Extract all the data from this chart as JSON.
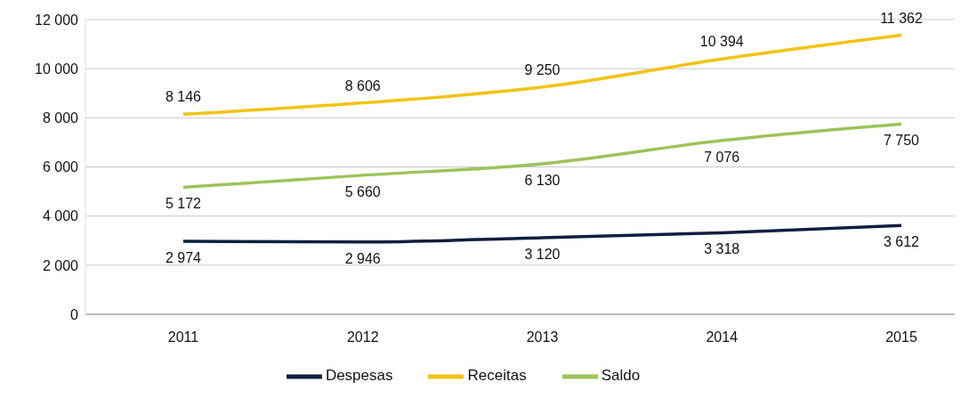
{
  "chart_data": {
    "type": "line",
    "categories": [
      "2011",
      "2012",
      "2013",
      "2014",
      "2015"
    ],
    "series": [
      {
        "name": "Receitas",
        "color": "#f2c314",
        "values": [
          8146,
          8606,
          9250,
          10394,
          11362
        ],
        "value_labels": [
          "8 146",
          "8 606",
          "9 250",
          "10 394",
          "11 362"
        ]
      },
      {
        "name": "Despesas",
        "color": "#0f1f40",
        "values": [
          2974,
          2946,
          3120,
          3318,
          3612
        ],
        "value_labels": [
          "2 974",
          "2 946",
          "3 120",
          "3 318",
          "3 612"
        ]
      },
      {
        "name": "Saldo",
        "color": "#9cc35a",
        "values": [
          5172,
          5660,
          6130,
          7076,
          7750
        ],
        "value_labels": [
          "5 172",
          "5 660",
          "6 130",
          "7 076",
          "7 750"
        ]
      }
    ],
    "ylim": [
      0,
      12000
    ],
    "yticks": [
      0,
      {
        "value": 2000,
        "label": "2 000"
      },
      {
        "value": 4000,
        "label": "4 000"
      },
      {
        "value": 6000,
        "label": "6 000"
      },
      {
        "value": 8000,
        "label": "8 000"
      },
      {
        "value": 10000,
        "label": "10 000"
      },
      {
        "value": 12000,
        "label": "12 000"
      }
    ],
    "grid": "y",
    "legend": "bottom",
    "marker": "none",
    "line_style": "solid"
  }
}
